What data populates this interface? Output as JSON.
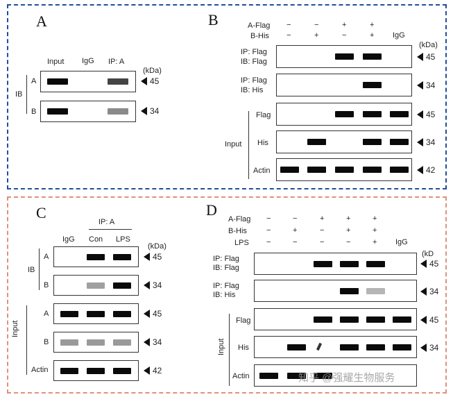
{
  "colors": {
    "top_frame": "#1f4e9c",
    "bottom_frame": "#e0907a",
    "band_dark": "#0a0a0a",
    "band_mid": "#444444",
    "band_light": "#8a8a8a",
    "band_pale": "#b5b5b5"
  },
  "common": {
    "kda": "(kDa)",
    "w45": "45",
    "w34": "34",
    "w42": "42",
    "plus": "+",
    "minus": "−",
    "igg": "IgG"
  },
  "panelA": {
    "letter": "A",
    "col_input": "Input",
    "col_igg": "IgG",
    "col_ip": "IP: A",
    "ib": "IB",
    "row_a": "A",
    "row_b": "B"
  },
  "panelB": {
    "letter": "B",
    "a_flag": "A-Flag",
    "b_his": "B-His",
    "ip_flag": "IP: Flag",
    "ib_flag": "IB: Flag",
    "ip_flag2": "IP: Flag",
    "ib_his": "IB: His",
    "input": "Input",
    "flag": "Flag",
    "his": "His",
    "actin": "Actin"
  },
  "panelC": {
    "letter": "C",
    "ip_a": "IP: A",
    "col_igg": "IgG",
    "col_con": "Con",
    "col_lps": "LPS",
    "ib": "IB",
    "input": "Input",
    "row_a": "A",
    "row_b": "B",
    "row_a2": "A",
    "row_b2": "B",
    "actin": "Actin"
  },
  "panelD": {
    "letter": "D",
    "a_flag": "A-Flag",
    "b_his": "B-His",
    "lps": "LPS",
    "ip_flag": "IP: Flag",
    "ib_flag": "IB: Flag",
    "ip_flag2": "IP: Flag",
    "ib_his": "IB: His",
    "input": "Input",
    "flag": "Flag",
    "his": "His",
    "actin": "Actin",
    "kda_short": "(kD"
  },
  "watermark": "知乎 @强耀生物服务"
}
